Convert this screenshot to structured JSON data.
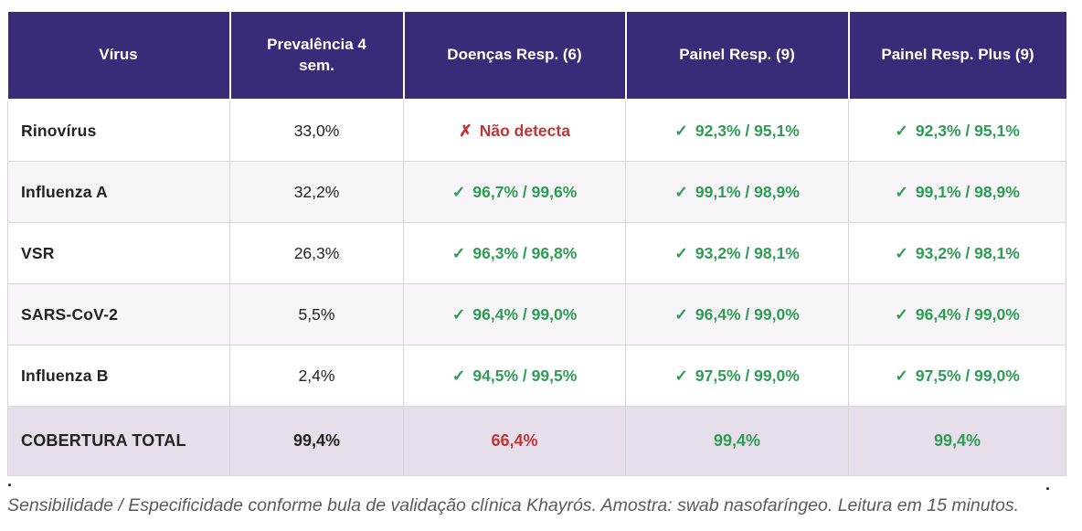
{
  "colors": {
    "header_bg": "#3a2b78",
    "header_text": "#ffffff",
    "positive": "#2e9c54",
    "negative": "#be3637",
    "total_row_bg": "#e7deeb",
    "alt_row_bg": "#f6f4f7",
    "grid_line": "#d6d6d6",
    "body_text": "#222222",
    "caption_text": "#5a5a5a"
  },
  "table": {
    "columns": [
      "Vírus",
      "Prevalência 4 sem.",
      "Doenças Resp. (6)",
      "Painel Resp. (9)",
      "Painel Resp. Plus (9)"
    ],
    "rows": [
      {
        "virus": "Rinovírus",
        "prevalence": "33,0%",
        "results": [
          {
            "icon": "✗",
            "text": "Não detecta",
            "status": "negative"
          },
          {
            "icon": "✓",
            "text": "92,3% / 95,1%",
            "status": "positive"
          },
          {
            "icon": "✓",
            "text": "92,3% / 95,1%",
            "status": "positive"
          }
        ]
      },
      {
        "virus": "Influenza A",
        "prevalence": "32,2%",
        "results": [
          {
            "icon": "✓",
            "text": "96,7% / 99,6%",
            "status": "positive"
          },
          {
            "icon": "✓",
            "text": "99,1% / 98,9%",
            "status": "positive"
          },
          {
            "icon": "✓",
            "text": "99,1% / 98,9%",
            "status": "positive"
          }
        ]
      },
      {
        "virus": "VSR",
        "prevalence": "26,3%",
        "results": [
          {
            "icon": "✓",
            "text": "96,3% / 96,8%",
            "status": "positive"
          },
          {
            "icon": "✓",
            "text": "93,2% / 98,1%",
            "status": "positive"
          },
          {
            "icon": "✓",
            "text": "93,2% / 98,1%",
            "status": "positive"
          }
        ]
      },
      {
        "virus": "SARS-CoV-2",
        "prevalence": "5,5%",
        "results": [
          {
            "icon": "✓",
            "text": "96,4% / 99,0%",
            "status": "positive"
          },
          {
            "icon": "✓",
            "text": "96,4% / 99,0%",
            "status": "positive"
          },
          {
            "icon": "✓",
            "text": "96,4% / 99,0%",
            "status": "positive"
          }
        ]
      },
      {
        "virus": "Influenza B",
        "prevalence": "2,4%",
        "results": [
          {
            "icon": "✓",
            "text": "94,5% / 99,5%",
            "status": "positive"
          },
          {
            "icon": "✓",
            "text": "97,5% / 99,0%",
            "status": "positive"
          },
          {
            "icon": "✓",
            "text": "97,5% / 99,0%",
            "status": "positive"
          }
        ]
      }
    ],
    "total_row": {
      "label": "COBERTURA TOTAL",
      "prevalence": "99,4%",
      "results": [
        {
          "text": "66,4%",
          "status": "negative"
        },
        {
          "text": "99,4%",
          "status": "positive"
        },
        {
          "text": "99,4%",
          "status": "positive"
        }
      ]
    }
  },
  "stray_marks": [
    ".",
    "."
  ],
  "caption": "Sensibilidade / Especificidade conforme bula de validação clínica Khayrós. Amostra: swab nasofaríngeo. Leitura em 15 minutos.",
  "chart_data": {
    "type": "table",
    "columns": [
      "Vírus",
      "Prevalência 4 sem.",
      "Doenças Resp. (6)",
      "Painel Resp. (9)",
      "Painel Resp. Plus (9)"
    ],
    "rows": [
      [
        "Rinovírus",
        "33,0%",
        "✗ Não detecta",
        "✓ 92,3% / 95,1%",
        "✓ 92,3% / 95,1%"
      ],
      [
        "Influenza A",
        "32,2%",
        "✓ 96,7% / 99,6%",
        "✓ 99,1% / 98,9%",
        "✓ 99,1% / 98,9%"
      ],
      [
        "VSR",
        "26,3%",
        "✓ 96,3% / 96,8%",
        "✓ 93,2% / 98,1%",
        "✓ 93,2% / 98,1%"
      ],
      [
        "SARS-CoV-2",
        "5,5%",
        "✓ 96,4% / 99,0%",
        "✓ 96,4% / 99,0%",
        "✓ 96,4% / 99,0%"
      ],
      [
        "Influenza B",
        "2,4%",
        "✓ 94,5% / 99,5%",
        "✓ 97,5% / 99,0%",
        "✓ 97,5% / 99,0%"
      ],
      [
        "COBERTURA TOTAL",
        "99,4%",
        "66,4%",
        "99,4%",
        "99,4%"
      ]
    ],
    "caption": "Sensibilidade / Especificidade conforme bula de validação clínica Khayrós. Amostra: swab nasofaríngeo. Leitura em 15 minutos."
  }
}
